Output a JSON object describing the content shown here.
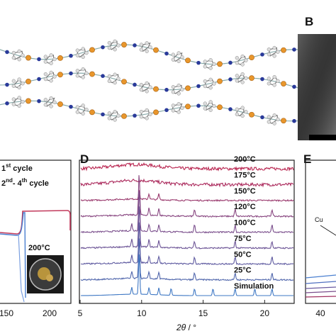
{
  "panel_b": {
    "letter": "B"
  },
  "panel_left": {
    "legend": [
      {
        "main": "1",
        "sup": "st",
        "rest": " cycle"
      },
      {
        "main": "2",
        "sup": "nd",
        "rest": "- 4",
        "sup2": "th",
        "rest2": " cycle"
      }
    ],
    "inset_label": "200°C",
    "xticks": [
      "150",
      "200"
    ]
  },
  "panel_d": {
    "letter": "D",
    "xlabel_symbol": "2θ",
    "xlabel_unit": " / °",
    "xlim": [
      5,
      22.4
    ],
    "xticks": [
      5,
      10,
      15,
      20
    ],
    "series": [
      {
        "name": "200°C",
        "color": "#b8244f",
        "peaks": []
      },
      {
        "name": "175°C",
        "color": "#ac2c5e",
        "peaks": []
      },
      {
        "name": "150°C",
        "color": "#9a3a6e",
        "peaks": [
          9.8,
          10.6,
          11.4
        ]
      },
      {
        "name": "120°C",
        "color": "#884680",
        "peaks": [
          9.8,
          10.6,
          11.4,
          14.3,
          17.6,
          20.6
        ]
      },
      {
        "name": "100°C",
        "color": "#7a4e8c",
        "peaks": [
          9.2,
          9.8,
          10.6,
          11.4,
          14.3,
          17.6,
          20.6
        ]
      },
      {
        "name": "75°C",
        "color": "#6c5496",
        "peaks": [
          9.2,
          9.8,
          10.6,
          11.4,
          14.3,
          17.6,
          20.6
        ]
      },
      {
        "name": "50°C",
        "color": "#5e5aa0",
        "peaks": [
          9.2,
          9.8,
          10.6,
          11.4,
          14.3,
          17.6,
          20.6
        ]
      },
      {
        "name": "25°C",
        "color": "#5066ac",
        "peaks": [
          9.2,
          9.8,
          10.6,
          11.4,
          14.3,
          17.6,
          20.6
        ]
      },
      {
        "name": "Simulation",
        "color": "#3f78c4",
        "peaks": [
          9.2,
          9.8,
          10.6,
          11.4,
          12.4,
          14.3,
          15.8,
          17.6,
          19.2,
          20.6
        ]
      }
    ]
  },
  "panel_e": {
    "letter": "E",
    "annotation": "Cu",
    "xticks": [
      "40"
    ]
  }
}
